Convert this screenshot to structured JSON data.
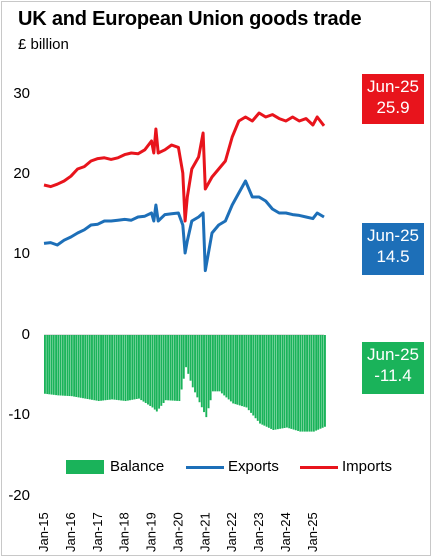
{
  "colors": {
    "imports": "#e8141c",
    "exports": "#1d6fb8",
    "balance": "#1ab35a"
  },
  "callouts": {
    "imports": {
      "period": "Jun-25",
      "value": "25.9"
    },
    "exports": {
      "period": "Jun-25",
      "value": "14.5"
    },
    "balance": {
      "period": "Jun-25",
      "value": "-11.4"
    }
  },
  "chart_data": [
    {
      "type": "line",
      "title": "UK and European Union goods trade",
      "subtitle": "£ billion",
      "ylim": [
        10,
        30
      ],
      "yticks": [
        "30",
        "20",
        "10"
      ],
      "x": [
        "2015-01",
        "2015-04",
        "2015-07",
        "2015-10",
        "2016-01",
        "2016-04",
        "2016-07",
        "2016-10",
        "2017-01",
        "2017-04",
        "2017-07",
        "2017-10",
        "2018-01",
        "2018-04",
        "2018-07",
        "2018-10",
        "2019-01",
        "2019-02",
        "2019-03",
        "2019-04",
        "2019-07",
        "2019-10",
        "2020-01",
        "2020-03",
        "2020-04",
        "2020-05",
        "2020-07",
        "2020-10",
        "2020-12",
        "2021-01",
        "2021-04",
        "2021-07",
        "2021-10",
        "2022-01",
        "2022-04",
        "2022-07",
        "2022-10",
        "2023-01",
        "2023-04",
        "2023-07",
        "2023-10",
        "2024-01",
        "2024-04",
        "2024-07",
        "2024-10",
        "2025-01",
        "2025-03",
        "2025-06"
      ],
      "series": [
        {
          "name": "Imports",
          "values": [
            18.5,
            18.3,
            18.6,
            19.0,
            19.6,
            20.5,
            20.8,
            21.5,
            21.8,
            21.9,
            21.7,
            21.9,
            22.3,
            22.5,
            22.4,
            22.9,
            24.0,
            22.5,
            25.5,
            22.5,
            22.9,
            23.5,
            23.2,
            20.0,
            14.0,
            17.0,
            20.5,
            22.0,
            25.0,
            18.0,
            19.5,
            20.5,
            21.5,
            24.5,
            26.5,
            27.0,
            26.5,
            27.5,
            27.0,
            27.3,
            26.8,
            26.5,
            27.0,
            26.5,
            26.8,
            26.0,
            27.0,
            25.9
          ]
        },
        {
          "name": "Exports",
          "values": [
            11.2,
            11.3,
            11.0,
            11.6,
            12.0,
            12.5,
            12.9,
            13.5,
            13.6,
            14.0,
            14.0,
            14.1,
            14.2,
            14.1,
            14.5,
            14.6,
            15.0,
            14.0,
            16.0,
            14.0,
            14.8,
            14.9,
            15.0,
            13.5,
            10.0,
            11.5,
            14.0,
            14.5,
            15.0,
            7.8,
            12.5,
            13.5,
            14.0,
            16.0,
            17.5,
            19.0,
            17.0,
            17.0,
            16.5,
            15.5,
            15.0,
            15.0,
            14.8,
            14.7,
            14.5,
            14.3,
            15.0,
            14.5
          ]
        }
      ]
    },
    {
      "type": "bar",
      "ylim": [
        -20,
        0
      ],
      "yticks": [
        "0",
        "-10",
        "-20"
      ],
      "x": [
        "2015-01",
        "2015-07",
        "2016-01",
        "2016-07",
        "2017-01",
        "2017-07",
        "2018-01",
        "2018-07",
        "2019-01",
        "2019-03",
        "2019-07",
        "2020-01",
        "2020-04",
        "2020-07",
        "2021-01",
        "2021-04",
        "2021-07",
        "2022-01",
        "2022-07",
        "2023-01",
        "2023-07",
        "2024-01",
        "2024-07",
        "2025-01",
        "2025-06"
      ],
      "series": [
        {
          "name": "Balance",
          "values": [
            -7.3,
            -7.5,
            -7.6,
            -7.9,
            -8.2,
            -8.0,
            -8.2,
            -7.9,
            -9.0,
            -9.5,
            -8.1,
            -8.2,
            -4.0,
            -6.5,
            -10.2,
            -7.0,
            -7.0,
            -8.5,
            -9.0,
            -11.0,
            -11.8,
            -11.5,
            -12.0,
            -12.0,
            -11.4
          ]
        }
      ],
      "xticks": [
        "Jan-15",
        "Jan-16",
        "Jan-17",
        "Jan-18",
        "Jan-19",
        "Jan-20",
        "Jan-21",
        "Jan-22",
        "Jan-23",
        "Jan-24",
        "Jan-25"
      ]
    }
  ]
}
